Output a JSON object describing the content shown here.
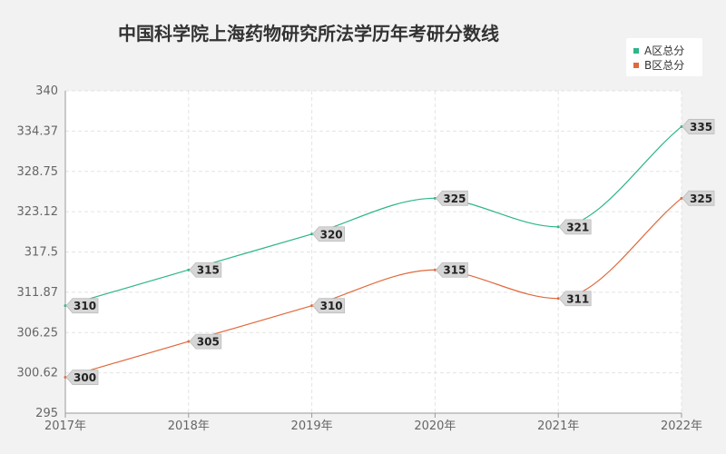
{
  "chart_data": {
    "type": "line",
    "title": "中国科学院上海药物研究所法学历年考研分数线",
    "xlabel": "",
    "ylabel": "",
    "categories": [
      "2017年",
      "2018年",
      "2019年",
      "2020年",
      "2021年",
      "2022年"
    ],
    "y_ticks": [
      "295",
      "300.62",
      "306.25",
      "311.87",
      "317.5",
      "323.12",
      "328.75",
      "334.37",
      "340"
    ],
    "ylim": [
      295,
      340
    ],
    "grid": true,
    "legend_position": "top-right",
    "smooth": true,
    "series": [
      {
        "name": "A区总分",
        "color": "#2fb58a",
        "values": [
          310,
          315,
          320,
          325,
          321,
          335
        ]
      },
      {
        "name": "B区总分",
        "color": "#e0693b",
        "values": [
          300,
          305,
          310,
          315,
          311,
          325
        ]
      }
    ]
  }
}
